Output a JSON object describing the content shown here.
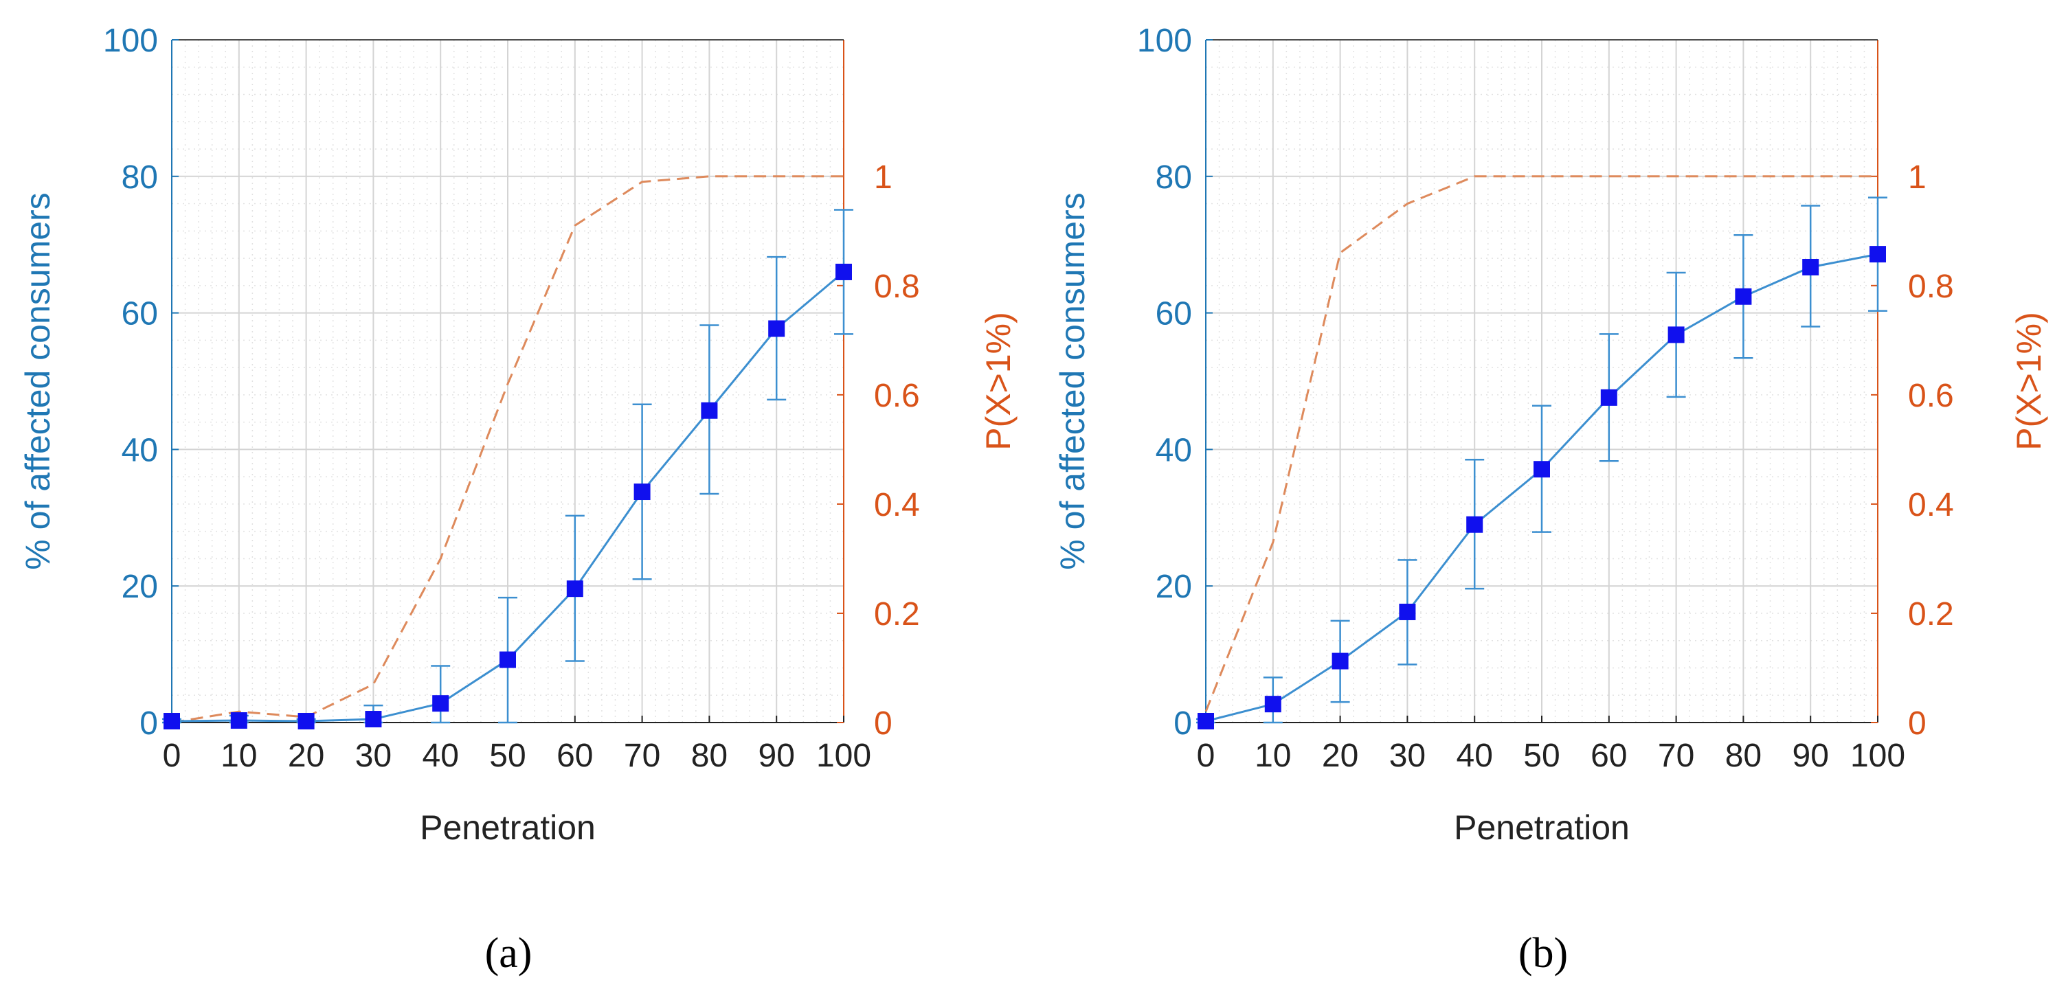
{
  "colors": {
    "left_axis": "#1f77b4",
    "right_axis": "#d95319",
    "line": "#3c8fd0",
    "marker": "#1010ee",
    "dashed": "#de8a5c",
    "grid_major": "#d4d4d4",
    "grid_minor": "#e2e2e2",
    "axis_text": "#222222"
  },
  "chart_data": [
    {
      "type": "line",
      "caption": "(a)",
      "xlabel": "Penetration",
      "ylabel": "% of affected consumers",
      "y2label": "P(X>1%)",
      "xlim": [
        0,
        100
      ],
      "ylim": [
        0,
        100
      ],
      "y2lim": [
        0,
        1.25
      ],
      "x_ticks": [
        "0",
        "10",
        "20",
        "30",
        "40",
        "50",
        "60",
        "70",
        "80",
        "90",
        "100"
      ],
      "y_ticks": [
        "0",
        "20",
        "40",
        "60",
        "80",
        "100"
      ],
      "y2_ticks": [
        "0",
        "0.2",
        "0.4",
        "0.6",
        "0.8",
        "1"
      ],
      "grid": true,
      "x": [
        0,
        10,
        20,
        30,
        40,
        50,
        60,
        70,
        80,
        90,
        100
      ],
      "series": [
        {
          "axis": "left",
          "style": "solid-with-square-markers-and-error-bars",
          "values": [
            0.2,
            0.3,
            0.2,
            0.5,
            2.8,
            9.2,
            19.6,
            33.8,
            45.7,
            57.7,
            66.0
          ],
          "err_low": [
            0,
            0,
            0,
            0,
            0,
            0,
            9.0,
            21.0,
            33.5,
            47.3,
            56.9
          ],
          "err_high": [
            0.5,
            1.0,
            0.5,
            2.5,
            8.3,
            18.3,
            30.3,
            46.6,
            58.2,
            68.2,
            75.1
          ]
        },
        {
          "axis": "right",
          "style": "dashed",
          "values": [
            0.0,
            0.02,
            0.01,
            0.07,
            0.3,
            0.62,
            0.91,
            0.99,
            1.0,
            1.0,
            1.0
          ]
        }
      ]
    },
    {
      "type": "line",
      "caption": "(b)",
      "xlabel": "Penetration",
      "ylabel": "% of affected consumers",
      "y2label": "P(X>1%)",
      "xlim": [
        0,
        100
      ],
      "ylim": [
        0,
        100
      ],
      "y2lim": [
        0,
        1.25
      ],
      "x_ticks": [
        "0",
        "10",
        "20",
        "30",
        "40",
        "50",
        "60",
        "70",
        "80",
        "90",
        "100"
      ],
      "y_ticks": [
        "0",
        "20",
        "40",
        "60",
        "80",
        "100"
      ],
      "y2_ticks": [
        "0",
        "0.2",
        "0.4",
        "0.6",
        "0.8",
        "1"
      ],
      "grid": true,
      "x": [
        0,
        10,
        20,
        30,
        40,
        50,
        60,
        70,
        80,
        90,
        100
      ],
      "series": [
        {
          "axis": "left",
          "style": "solid-with-square-markers-and-error-bars",
          "values": [
            0.2,
            2.7,
            9.0,
            16.2,
            29.0,
            37.1,
            47.6,
            56.8,
            62.4,
            66.7,
            68.6
          ],
          "err_low": [
            0,
            0,
            3.0,
            8.5,
            19.6,
            27.9,
            38.3,
            47.7,
            53.4,
            58.0,
            60.3
          ],
          "err_high": [
            0.5,
            6.6,
            14.9,
            23.8,
            38.5,
            46.4,
            56.9,
            65.9,
            71.4,
            75.7,
            76.9
          ]
        },
        {
          "axis": "right",
          "style": "dashed",
          "values": [
            0.02,
            0.33,
            0.86,
            0.95,
            1.0,
            1.0,
            1.0,
            1.0,
            1.0,
            1.0,
            1.0
          ]
        }
      ]
    }
  ]
}
